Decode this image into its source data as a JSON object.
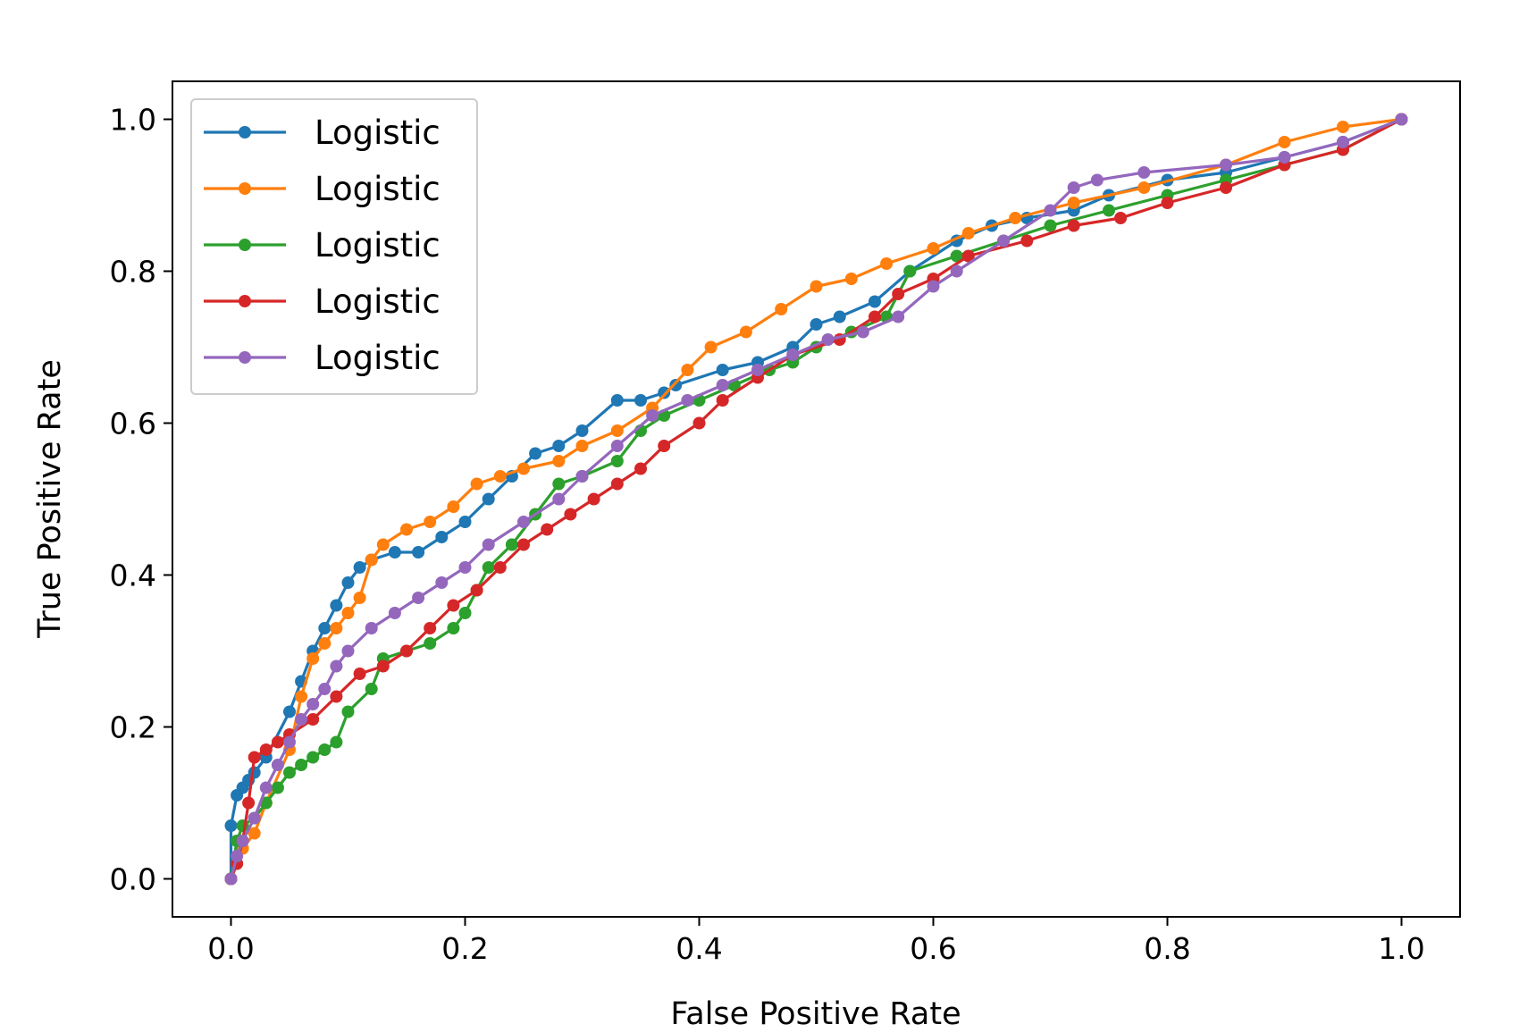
{
  "chart_data": {
    "type": "line",
    "title": "",
    "xlabel": "False Positive Rate",
    "ylabel": "True Positive Rate",
    "xlim": [
      -0.05,
      1.05
    ],
    "ylim": [
      -0.05,
      1.05
    ],
    "xticks": [
      "0.0",
      "0.2",
      "0.4",
      "0.6",
      "0.8",
      "1.0"
    ],
    "yticks": [
      "0.0",
      "0.2",
      "0.4",
      "0.6",
      "0.8",
      "1.0"
    ],
    "grid": false,
    "legend": "upper-left",
    "markers": true,
    "series": [
      {
        "name": "Logistic",
        "color": "#1f77b4",
        "x": [
          0.0,
          0.0,
          0.005,
          0.01,
          0.015,
          0.02,
          0.03,
          0.05,
          0.06,
          0.07,
          0.08,
          0.09,
          0.1,
          0.11,
          0.12,
          0.14,
          0.16,
          0.18,
          0.2,
          0.22,
          0.24,
          0.26,
          0.28,
          0.3,
          0.33,
          0.35,
          0.37,
          0.38,
          0.42,
          0.45,
          0.48,
          0.5,
          0.52,
          0.55,
          0.58,
          0.62,
          0.65,
          0.68,
          0.72,
          0.75,
          0.8,
          0.85,
          0.9,
          0.95,
          1.0
        ],
        "y": [
          0.0,
          0.07,
          0.11,
          0.12,
          0.13,
          0.14,
          0.16,
          0.22,
          0.26,
          0.3,
          0.33,
          0.36,
          0.39,
          0.41,
          0.42,
          0.43,
          0.43,
          0.45,
          0.47,
          0.5,
          0.53,
          0.56,
          0.57,
          0.59,
          0.63,
          0.63,
          0.64,
          0.65,
          0.67,
          0.68,
          0.7,
          0.73,
          0.74,
          0.76,
          0.8,
          0.84,
          0.86,
          0.87,
          0.88,
          0.9,
          0.92,
          0.93,
          0.95,
          0.97,
          1.0
        ]
      },
      {
        "name": "Logistic",
        "color": "#ff7f0e",
        "x": [
          0.0,
          0.005,
          0.01,
          0.02,
          0.03,
          0.05,
          0.06,
          0.07,
          0.08,
          0.09,
          0.1,
          0.11,
          0.12,
          0.13,
          0.15,
          0.17,
          0.19,
          0.21,
          0.23,
          0.25,
          0.28,
          0.3,
          0.33,
          0.36,
          0.39,
          0.41,
          0.44,
          0.47,
          0.5,
          0.53,
          0.56,
          0.6,
          0.63,
          0.67,
          0.72,
          0.78,
          0.85,
          0.9,
          0.95,
          1.0
        ],
        "y": [
          0.0,
          0.02,
          0.04,
          0.06,
          0.1,
          0.17,
          0.24,
          0.29,
          0.31,
          0.33,
          0.35,
          0.37,
          0.42,
          0.44,
          0.46,
          0.47,
          0.49,
          0.52,
          0.53,
          0.54,
          0.55,
          0.57,
          0.59,
          0.62,
          0.67,
          0.7,
          0.72,
          0.75,
          0.78,
          0.79,
          0.81,
          0.83,
          0.85,
          0.87,
          0.89,
          0.91,
          0.94,
          0.97,
          0.99,
          1.0
        ]
      },
      {
        "name": "Logistic",
        "color": "#2ca02c",
        "x": [
          0.0,
          0.005,
          0.01,
          0.02,
          0.03,
          0.04,
          0.05,
          0.06,
          0.07,
          0.08,
          0.09,
          0.1,
          0.12,
          0.13,
          0.15,
          0.17,
          0.19,
          0.2,
          0.21,
          0.22,
          0.24,
          0.26,
          0.28,
          0.3,
          0.33,
          0.35,
          0.37,
          0.4,
          0.43,
          0.46,
          0.48,
          0.5,
          0.53,
          0.56,
          0.58,
          0.62,
          0.66,
          0.7,
          0.75,
          0.8,
          0.85,
          0.9,
          0.95,
          1.0
        ],
        "y": [
          0.0,
          0.05,
          0.07,
          0.08,
          0.1,
          0.12,
          0.14,
          0.15,
          0.16,
          0.17,
          0.18,
          0.22,
          0.25,
          0.29,
          0.3,
          0.31,
          0.33,
          0.35,
          0.38,
          0.41,
          0.44,
          0.48,
          0.52,
          0.53,
          0.55,
          0.59,
          0.61,
          0.63,
          0.65,
          0.67,
          0.68,
          0.7,
          0.72,
          0.74,
          0.8,
          0.82,
          0.84,
          0.86,
          0.88,
          0.9,
          0.92,
          0.94,
          0.96,
          1.0
        ]
      },
      {
        "name": "Logistic",
        "color": "#d62728",
        "x": [
          0.0,
          0.005,
          0.01,
          0.015,
          0.02,
          0.03,
          0.04,
          0.05,
          0.07,
          0.09,
          0.11,
          0.13,
          0.15,
          0.17,
          0.19,
          0.21,
          0.23,
          0.25,
          0.27,
          0.29,
          0.31,
          0.33,
          0.35,
          0.37,
          0.4,
          0.42,
          0.45,
          0.48,
          0.52,
          0.55,
          0.57,
          0.6,
          0.63,
          0.68,
          0.72,
          0.76,
          0.8,
          0.85,
          0.9,
          0.95,
          1.0
        ],
        "y": [
          0.0,
          0.02,
          0.05,
          0.1,
          0.16,
          0.17,
          0.18,
          0.19,
          0.21,
          0.24,
          0.27,
          0.28,
          0.3,
          0.33,
          0.36,
          0.38,
          0.41,
          0.44,
          0.46,
          0.48,
          0.5,
          0.52,
          0.54,
          0.57,
          0.6,
          0.63,
          0.66,
          0.69,
          0.71,
          0.74,
          0.77,
          0.79,
          0.82,
          0.84,
          0.86,
          0.87,
          0.89,
          0.91,
          0.94,
          0.96,
          1.0
        ]
      },
      {
        "name": "Logistic",
        "color": "#9467bd",
        "x": [
          0.0,
          0.005,
          0.01,
          0.02,
          0.03,
          0.04,
          0.05,
          0.06,
          0.07,
          0.08,
          0.09,
          0.1,
          0.12,
          0.14,
          0.16,
          0.18,
          0.2,
          0.22,
          0.25,
          0.28,
          0.3,
          0.33,
          0.36,
          0.39,
          0.42,
          0.45,
          0.48,
          0.51,
          0.54,
          0.57,
          0.6,
          0.62,
          0.66,
          0.7,
          0.72,
          0.74,
          0.78,
          0.85,
          0.9,
          0.95,
          1.0
        ],
        "y": [
          0.0,
          0.03,
          0.05,
          0.08,
          0.12,
          0.15,
          0.18,
          0.21,
          0.23,
          0.25,
          0.28,
          0.3,
          0.33,
          0.35,
          0.37,
          0.39,
          0.41,
          0.44,
          0.47,
          0.5,
          0.53,
          0.57,
          0.61,
          0.63,
          0.65,
          0.67,
          0.69,
          0.71,
          0.72,
          0.74,
          0.78,
          0.8,
          0.84,
          0.88,
          0.91,
          0.92,
          0.93,
          0.94,
          0.95,
          0.97,
          1.0
        ]
      }
    ]
  }
}
